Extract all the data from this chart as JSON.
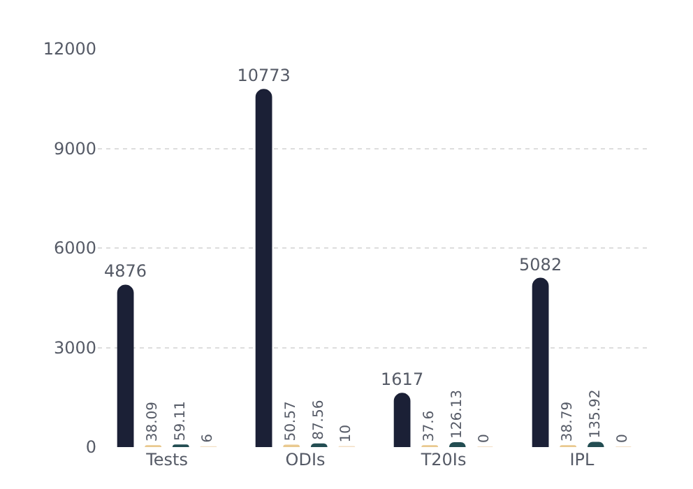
{
  "chart_data": {
    "type": "bar",
    "categories": [
      "Tests",
      "ODIs",
      "T20Is",
      "IPL"
    ],
    "series": [
      {
        "color": "#1b2036",
        "values": [
          4876,
          10773,
          1617,
          5082
        ]
      },
      {
        "color": "#e9c98f",
        "values": [
          38.09,
          50.57,
          37.6,
          38.79
        ]
      },
      {
        "color": "#234d52",
        "values": [
          59.11,
          87.56,
          126.13,
          135.92
        ]
      },
      {
        "color": "#f3dfc4",
        "values": [
          6,
          10,
          0,
          0
        ]
      }
    ],
    "ylim": [
      0,
      12000
    ],
    "yticks": [
      0,
      3000,
      6000,
      9000,
      12000
    ],
    "grid": "y",
    "data_labels": true,
    "legend": false
  }
}
